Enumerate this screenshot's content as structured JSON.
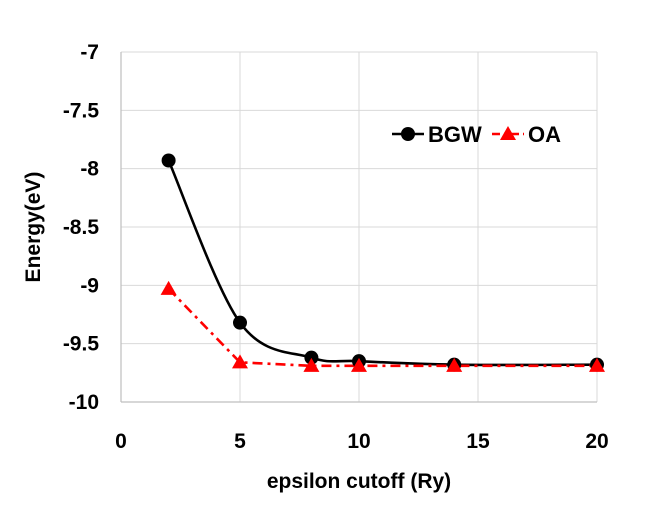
{
  "chart_data": {
    "type": "line",
    "title": "",
    "xlabel": "epsilon cutoff (Ry)",
    "ylabel": "Energy(eV)",
    "xlim": [
      0,
      20
    ],
    "ylim": [
      -10,
      -7
    ],
    "xticks": [
      0,
      5,
      10,
      15,
      20
    ],
    "yticks": [
      -7,
      -7.5,
      -8,
      -8.5,
      -9,
      -9.5,
      -10
    ],
    "xtick_labels": [
      "0",
      "5",
      "10",
      "15",
      "20"
    ],
    "ytick_labels": [
      "-7",
      "-7.5",
      "-8",
      "-8.5",
      "-9",
      "-9.5",
      "-10"
    ],
    "grid": true,
    "legend_position": "top-right",
    "series": [
      {
        "name": "BGW",
        "color": "#000000",
        "marker": "circle",
        "line_style": "solid",
        "smooth": true,
        "x": [
          2,
          5,
          8,
          10,
          14,
          20
        ],
        "values": [
          -7.93,
          -9.32,
          -9.62,
          -9.65,
          -9.68,
          -9.68
        ]
      },
      {
        "name": "OA",
        "color": "#ff0000",
        "marker": "triangle",
        "line_style": "dash-dot",
        "smooth": false,
        "x": [
          2,
          5,
          8,
          10,
          14,
          20
        ],
        "values": [
          -9.03,
          -9.66,
          -9.69,
          -9.69,
          -9.69,
          -9.69
        ]
      }
    ]
  }
}
